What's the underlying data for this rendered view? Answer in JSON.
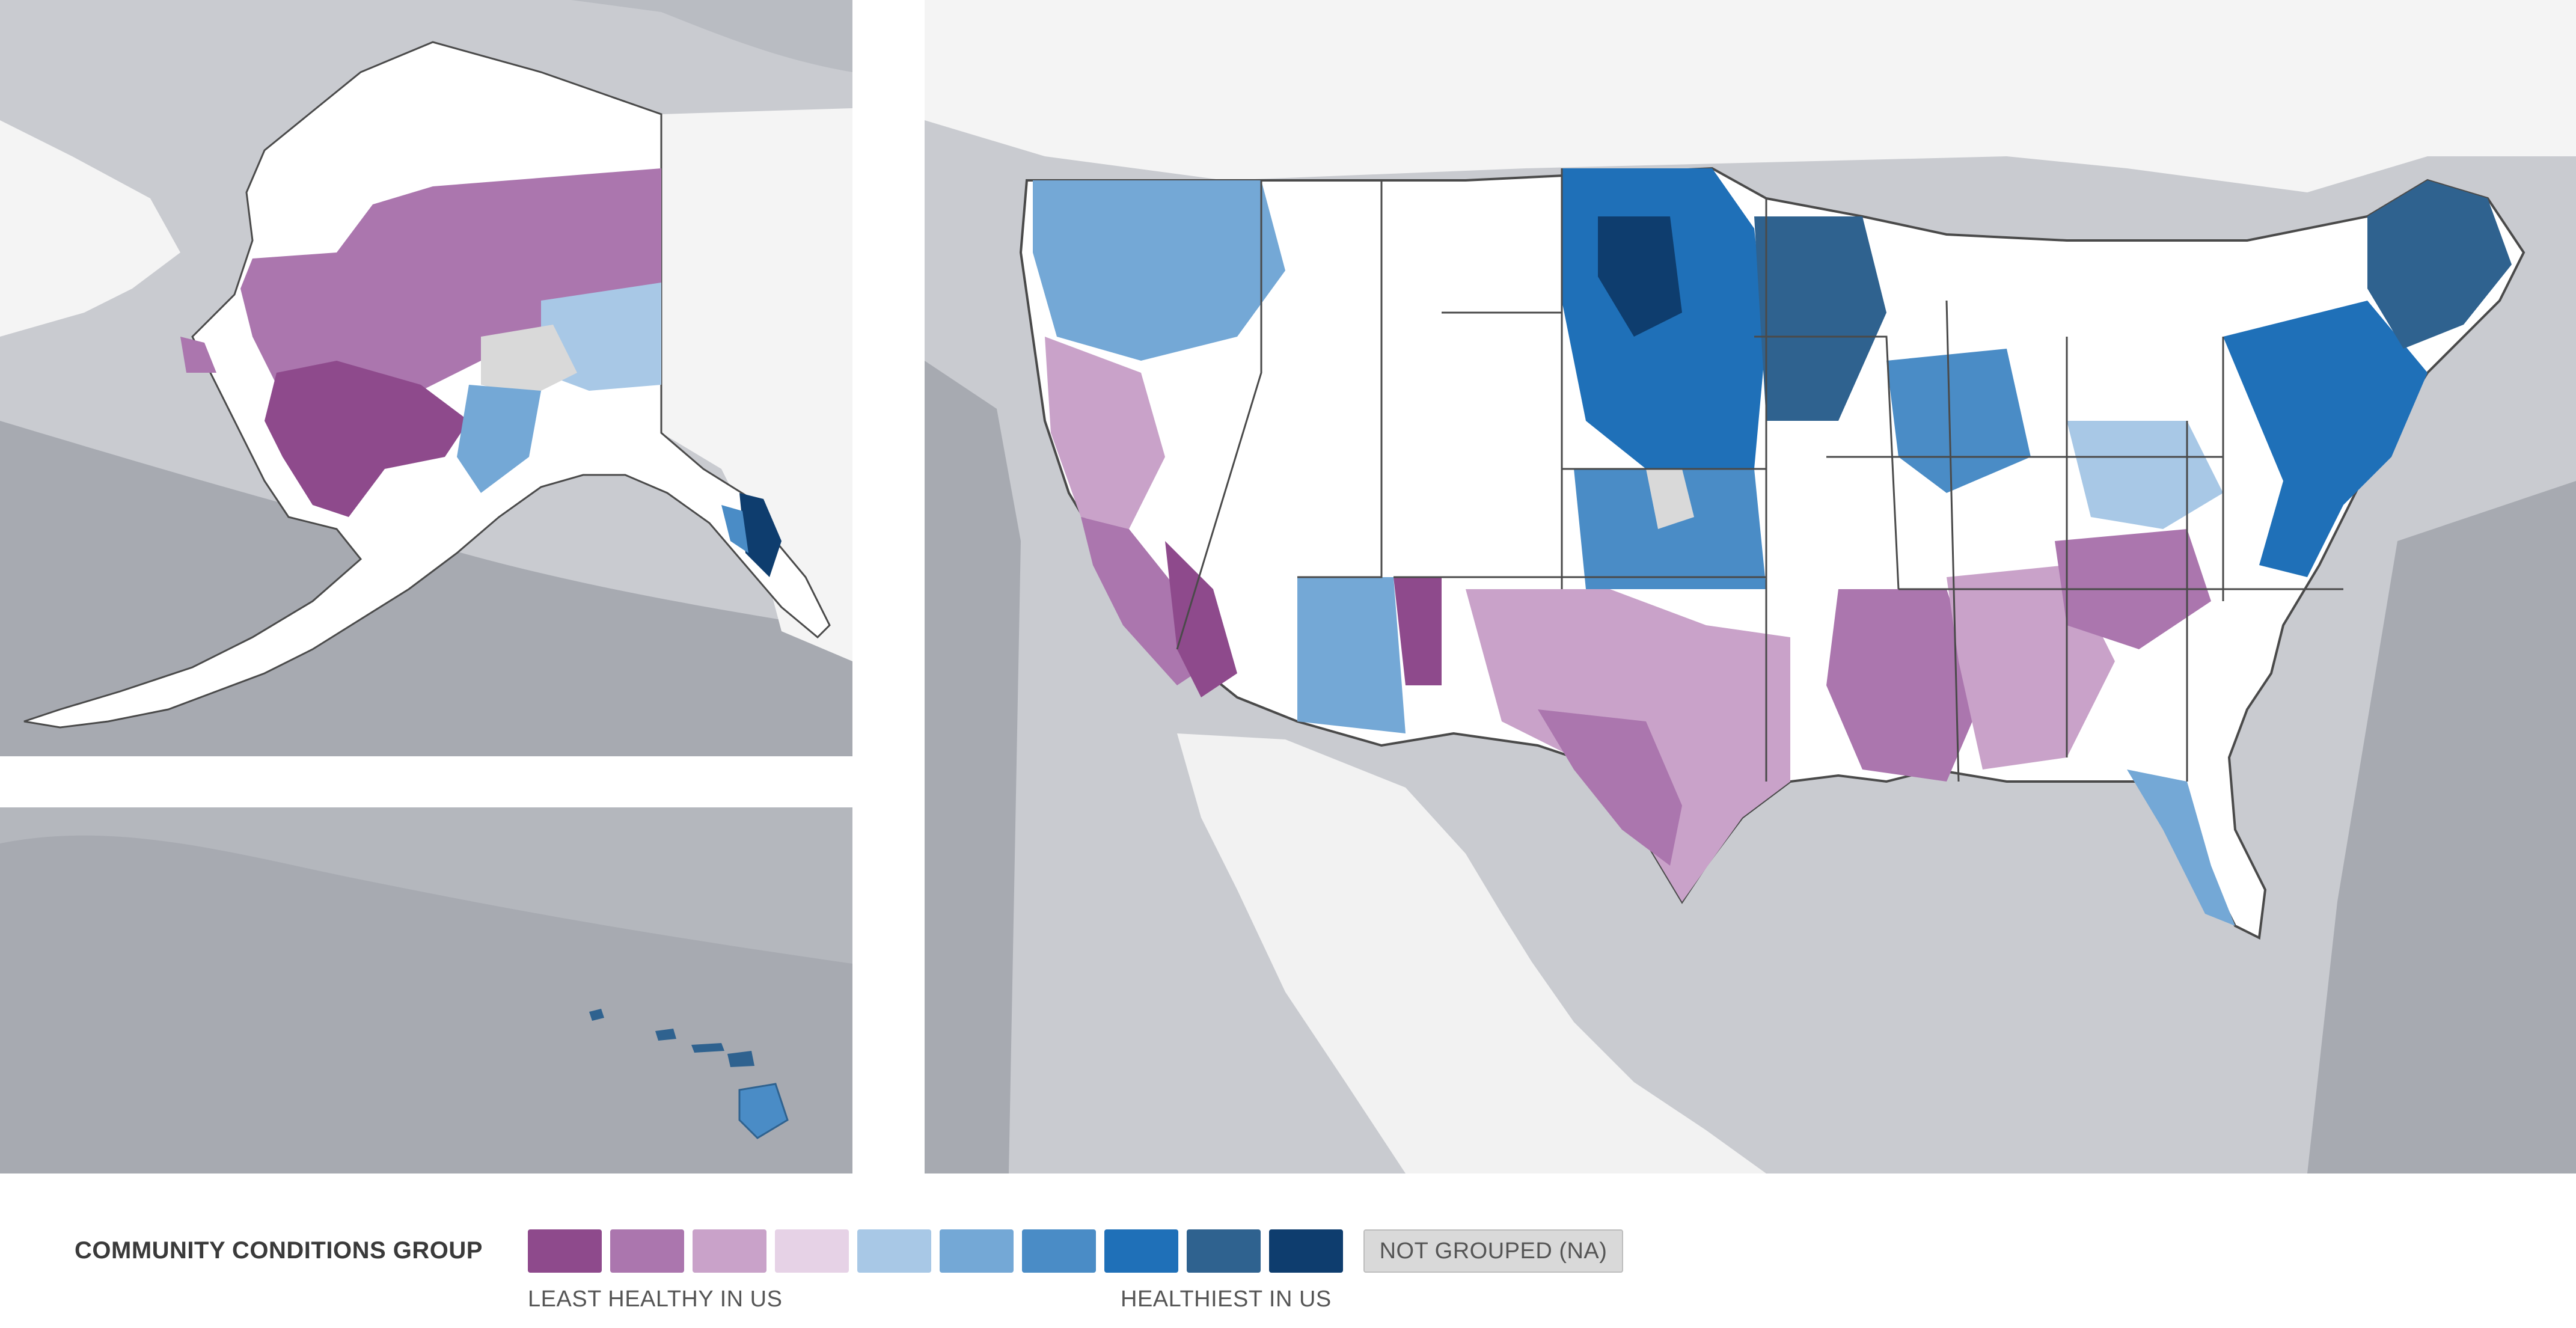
{
  "legend": {
    "title": "COMMUNITY CONDITIONS GROUP",
    "not_grouped_label": "NOT GROUPED (NA)",
    "least_label": "LEAST HEALTHY IN US",
    "healthiest_label": "HEALTHIEST IN US",
    "swatches": [
      {
        "group": 1,
        "color": "#8e4a8c"
      },
      {
        "group": 2,
        "color": "#ab76ae"
      },
      {
        "group": 3,
        "color": "#c9a2c9"
      },
      {
        "group": 4,
        "color": "#e6d2e6"
      },
      {
        "group": 5,
        "color": "#a8c8e6"
      },
      {
        "group": 6,
        "color": "#74a8d6"
      },
      {
        "group": 7,
        "color": "#4a8cc6"
      },
      {
        "group": 8,
        "color": "#1f70b8"
      },
      {
        "group": 9,
        "color": "#2f628f"
      },
      {
        "group": 10,
        "color": "#0e3d6e"
      }
    ],
    "na_color": "#d9d9d9"
  },
  "colors": {
    "ocean": "#c9cbd0",
    "ocean_deep": "#a7aab1",
    "land": "#ffffff",
    "border": "#4a4a4a"
  }
}
